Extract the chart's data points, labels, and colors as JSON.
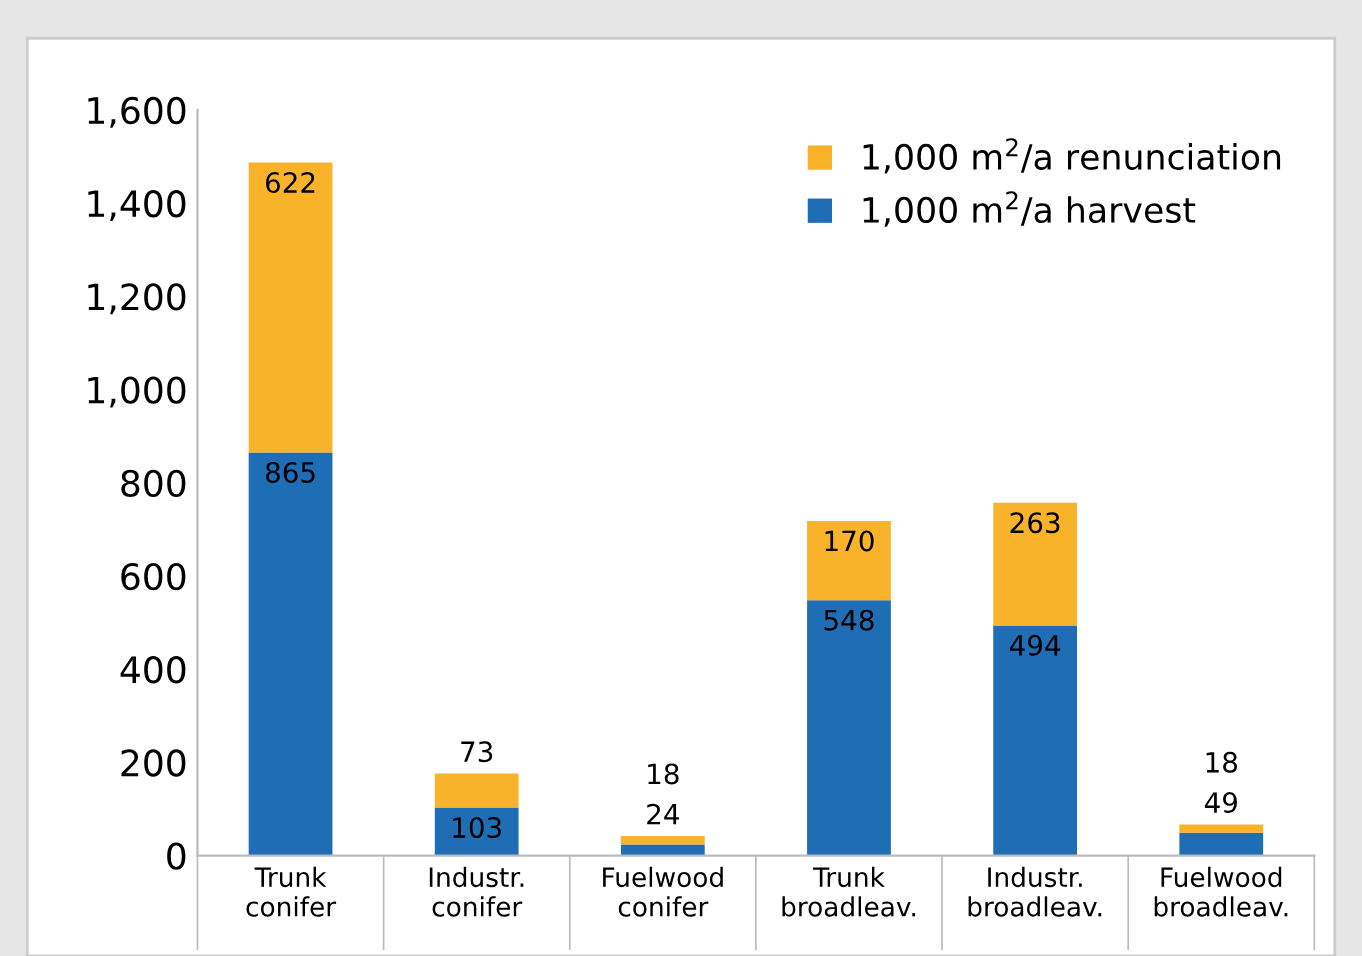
{
  "chart_data": {
    "type": "bar",
    "stacked": true,
    "categories": [
      "Trunk\nconifer",
      "Industr.\nconifer",
      "Fuelwood\nconifer",
      "Trunk\nbroadleav.",
      "Industr.\nbroadleav.",
      "Fuelwood\nbroadleav."
    ],
    "series": [
      {
        "name": "1,000 m$^{2}$/a harvest",
        "color": "#1f6db5",
        "values": [
          865,
          103,
          24,
          548,
          494,
          49
        ]
      },
      {
        "name": "1,000 m$^{2}$/a renunciation",
        "color": "#f8b32a",
        "values": [
          622,
          73,
          18,
          170,
          263,
          18
        ]
      }
    ],
    "ylim": [
      0,
      1600
    ],
    "yticks": [
      0,
      200,
      400,
      600,
      800,
      {
        "value": 1000,
        "label": "1,000"
      },
      {
        "value": 1200,
        "label": "1,200"
      },
      {
        "value": 1400,
        "label": "1,400"
      },
      {
        "value": 1600,
        "label": "1,600"
      }
    ],
    "data_labels": true,
    "grid": false,
    "legend": "top right"
  }
}
